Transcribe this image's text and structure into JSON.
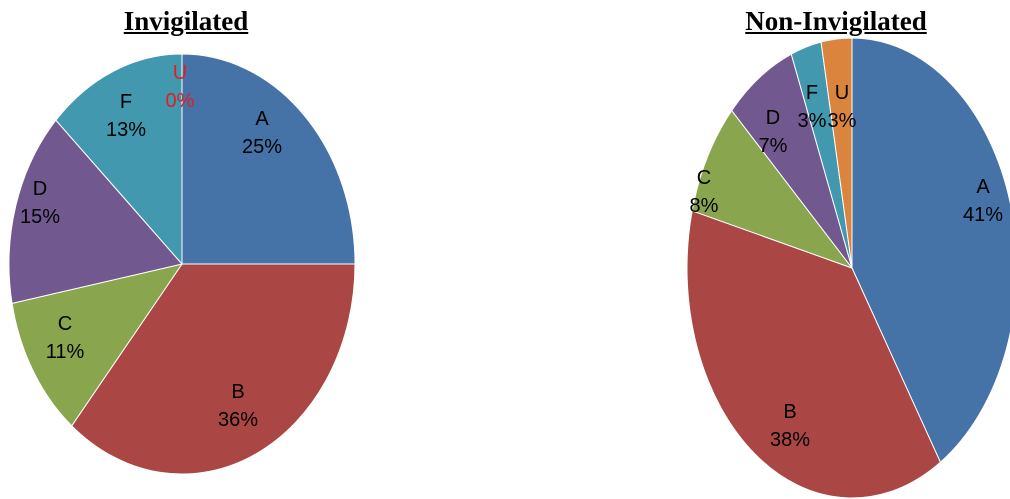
{
  "chart_data": [
    {
      "type": "pie",
      "title": "Invigilated",
      "slices": [
        {
          "label": "A",
          "value": 25,
          "display": "25%",
          "color": "#4572a7"
        },
        {
          "label": "B",
          "value": 36,
          "display": "36%",
          "color": "#aa4643"
        },
        {
          "label": "C",
          "value": 11,
          "display": "11%",
          "color": "#89a54e"
        },
        {
          "label": "D",
          "value": 15,
          "display": "15%",
          "color": "#71588f"
        },
        {
          "label": "F",
          "value": 13,
          "display": "13%",
          "color": "#4198af"
        },
        {
          "label": "U",
          "value": 0,
          "display": "0%",
          "color": "#db843d",
          "label_color": "#e02020"
        }
      ]
    },
    {
      "type": "pie",
      "title": "Non-Invigilated",
      "slices": [
        {
          "label": "A",
          "value": 41,
          "display": "41%",
          "color": "#4572a7"
        },
        {
          "label": "B",
          "value": 38,
          "display": "38%",
          "color": "#aa4643"
        },
        {
          "label": "C",
          "value": 8,
          "display": "8%",
          "color": "#89a54e"
        },
        {
          "label": "D",
          "value": 7,
          "display": "7%",
          "color": "#71588f"
        },
        {
          "label": "F",
          "value": 3,
          "display": "3%",
          "color": "#4198af"
        },
        {
          "label": "U",
          "value": 3,
          "display": "3%",
          "color": "#db843d"
        }
      ]
    }
  ]
}
